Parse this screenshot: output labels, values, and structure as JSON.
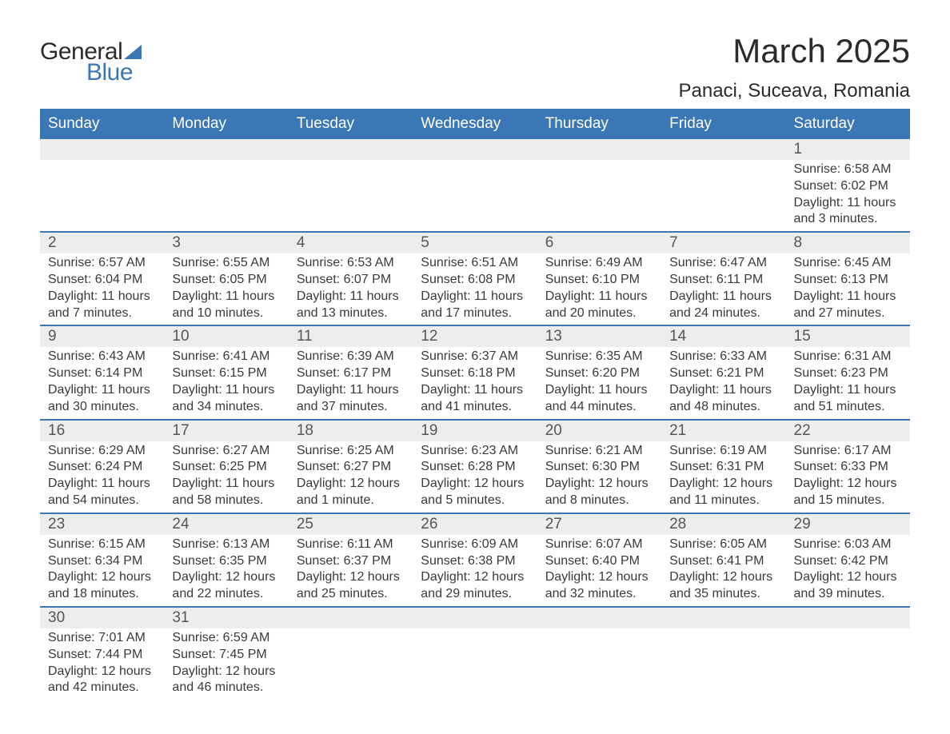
{
  "brand": {
    "word1": "General",
    "word2": "Blue"
  },
  "title": {
    "month": "March 2025",
    "location": "Panaci, Suceava, Romania"
  },
  "colors": {
    "header_bg": "#3b76b5",
    "header_text": "#ffffff",
    "daynum_bg": "#ededed",
    "daynum_text": "#565656",
    "body_text": "#3a3a3a",
    "row_border": "#3b76b5",
    "page_bg": "#ffffff",
    "logo_accent": "#3b76b5"
  },
  "typography": {
    "title_fontsize_pt": 32,
    "location_fontsize_pt": 18,
    "weekday_fontsize_pt": 14,
    "daynum_fontsize_pt": 14,
    "cell_fontsize_pt": 12
  },
  "weekdays": [
    "Sunday",
    "Monday",
    "Tuesday",
    "Wednesday",
    "Thursday",
    "Friday",
    "Saturday"
  ],
  "labels": {
    "sunrise": "Sunrise:",
    "sunset": "Sunset:",
    "daylight": "Daylight:"
  },
  "weeks": [
    [
      null,
      null,
      null,
      null,
      null,
      null,
      {
        "d": "1",
        "sr": "6:58 AM",
        "ss": "6:02 PM",
        "dl": "11 hours and 3 minutes."
      }
    ],
    [
      {
        "d": "2",
        "sr": "6:57 AM",
        "ss": "6:04 PM",
        "dl": "11 hours and 7 minutes."
      },
      {
        "d": "3",
        "sr": "6:55 AM",
        "ss": "6:05 PM",
        "dl": "11 hours and 10 minutes."
      },
      {
        "d": "4",
        "sr": "6:53 AM",
        "ss": "6:07 PM",
        "dl": "11 hours and 13 minutes."
      },
      {
        "d": "5",
        "sr": "6:51 AM",
        "ss": "6:08 PM",
        "dl": "11 hours and 17 minutes."
      },
      {
        "d": "6",
        "sr": "6:49 AM",
        "ss": "6:10 PM",
        "dl": "11 hours and 20 minutes."
      },
      {
        "d": "7",
        "sr": "6:47 AM",
        "ss": "6:11 PM",
        "dl": "11 hours and 24 minutes."
      },
      {
        "d": "8",
        "sr": "6:45 AM",
        "ss": "6:13 PM",
        "dl": "11 hours and 27 minutes."
      }
    ],
    [
      {
        "d": "9",
        "sr": "6:43 AM",
        "ss": "6:14 PM",
        "dl": "11 hours and 30 minutes."
      },
      {
        "d": "10",
        "sr": "6:41 AM",
        "ss": "6:15 PM",
        "dl": "11 hours and 34 minutes."
      },
      {
        "d": "11",
        "sr": "6:39 AM",
        "ss": "6:17 PM",
        "dl": "11 hours and 37 minutes."
      },
      {
        "d": "12",
        "sr": "6:37 AM",
        "ss": "6:18 PM",
        "dl": "11 hours and 41 minutes."
      },
      {
        "d": "13",
        "sr": "6:35 AM",
        "ss": "6:20 PM",
        "dl": "11 hours and 44 minutes."
      },
      {
        "d": "14",
        "sr": "6:33 AM",
        "ss": "6:21 PM",
        "dl": "11 hours and 48 minutes."
      },
      {
        "d": "15",
        "sr": "6:31 AM",
        "ss": "6:23 PM",
        "dl": "11 hours and 51 minutes."
      }
    ],
    [
      {
        "d": "16",
        "sr": "6:29 AM",
        "ss": "6:24 PM",
        "dl": "11 hours and 54 minutes."
      },
      {
        "d": "17",
        "sr": "6:27 AM",
        "ss": "6:25 PM",
        "dl": "11 hours and 58 minutes."
      },
      {
        "d": "18",
        "sr": "6:25 AM",
        "ss": "6:27 PM",
        "dl": "12 hours and 1 minute."
      },
      {
        "d": "19",
        "sr": "6:23 AM",
        "ss": "6:28 PM",
        "dl": "12 hours and 5 minutes."
      },
      {
        "d": "20",
        "sr": "6:21 AM",
        "ss": "6:30 PM",
        "dl": "12 hours and 8 minutes."
      },
      {
        "d": "21",
        "sr": "6:19 AM",
        "ss": "6:31 PM",
        "dl": "12 hours and 11 minutes."
      },
      {
        "d": "22",
        "sr": "6:17 AM",
        "ss": "6:33 PM",
        "dl": "12 hours and 15 minutes."
      }
    ],
    [
      {
        "d": "23",
        "sr": "6:15 AM",
        "ss": "6:34 PM",
        "dl": "12 hours and 18 minutes."
      },
      {
        "d": "24",
        "sr": "6:13 AM",
        "ss": "6:35 PM",
        "dl": "12 hours and 22 minutes."
      },
      {
        "d": "25",
        "sr": "6:11 AM",
        "ss": "6:37 PM",
        "dl": "12 hours and 25 minutes."
      },
      {
        "d": "26",
        "sr": "6:09 AM",
        "ss": "6:38 PM",
        "dl": "12 hours and 29 minutes."
      },
      {
        "d": "27",
        "sr": "6:07 AM",
        "ss": "6:40 PM",
        "dl": "12 hours and 32 minutes."
      },
      {
        "d": "28",
        "sr": "6:05 AM",
        "ss": "6:41 PM",
        "dl": "12 hours and 35 minutes."
      },
      {
        "d": "29",
        "sr": "6:03 AM",
        "ss": "6:42 PM",
        "dl": "12 hours and 39 minutes."
      }
    ],
    [
      {
        "d": "30",
        "sr": "7:01 AM",
        "ss": "7:44 PM",
        "dl": "12 hours and 42 minutes."
      },
      {
        "d": "31",
        "sr": "6:59 AM",
        "ss": "7:45 PM",
        "dl": "12 hours and 46 minutes."
      },
      null,
      null,
      null,
      null,
      null
    ]
  ]
}
